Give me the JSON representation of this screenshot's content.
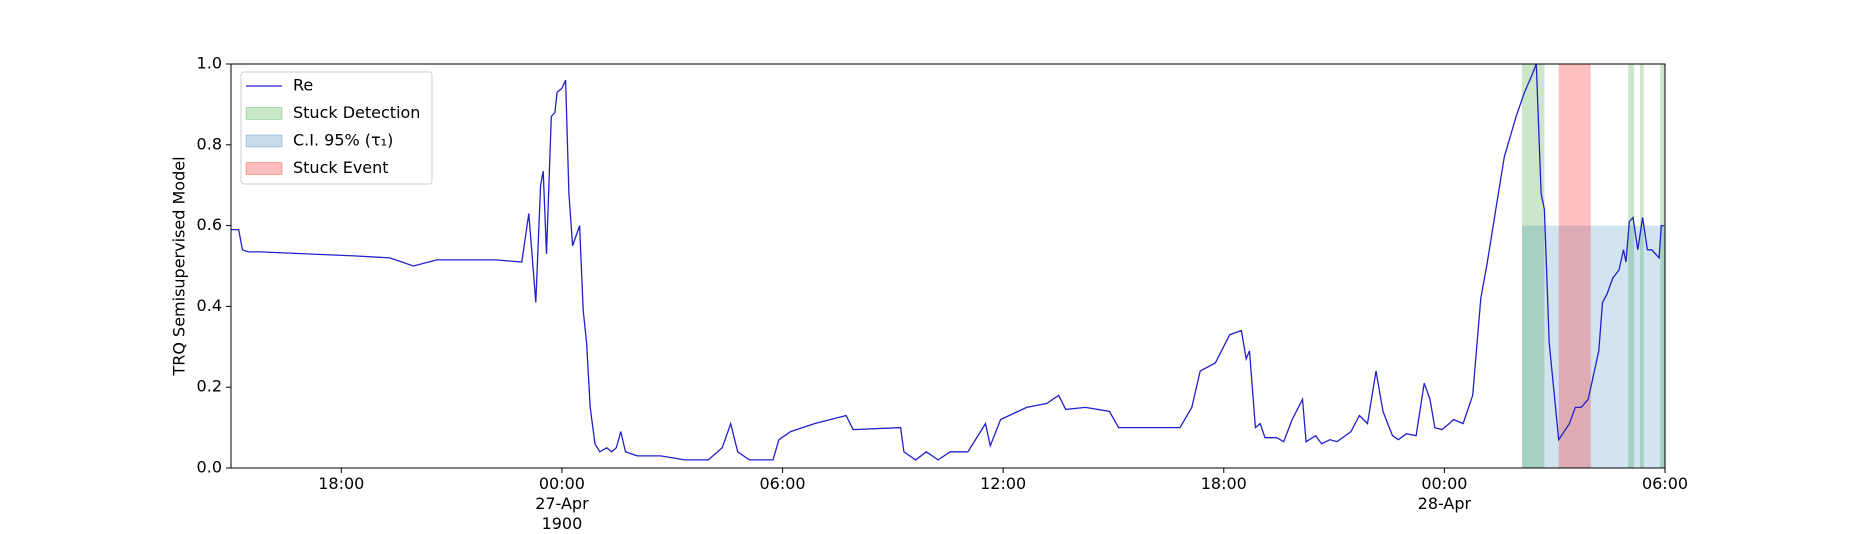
{
  "chart_data": {
    "type": "line",
    "ylabel": "TRQ Semisupervised Model",
    "xlim": [
      -9,
      30
    ],
    "xticks": [
      {
        "value": -6,
        "label": "18:00"
      },
      {
        "value": 0,
        "label": "00:00\n27-Apr\n1900"
      },
      {
        "value": 6,
        "label": "06:00"
      },
      {
        "value": 12,
        "label": "12:00"
      },
      {
        "value": 18,
        "label": "18:00"
      },
      {
        "value": 24,
        "label": "00:00\n28-Apr"
      },
      {
        "value": 30,
        "label": "06:00"
      }
    ],
    "ylim": [
      0,
      1
    ],
    "yticks": [
      {
        "value": 0,
        "label": "0.0"
      },
      0.2,
      0.4,
      0.6,
      0.8,
      {
        "value": 1,
        "label": "1.0"
      }
    ],
    "legend": "upper left",
    "x": [
      -9.0,
      -8.79,
      -8.69,
      -8.53,
      -8.21,
      -6.93,
      -5.65,
      -4.68,
      -4.04,
      -3.4,
      -1.8,
      -1.09,
      -0.9,
      -0.71,
      -0.58,
      -0.51,
      -0.42,
      -0.29,
      -0.19,
      -0.13,
      0,
      0.1,
      0.19,
      0.29,
      0.48,
      0.58,
      0.67,
      0.77,
      0.9,
      1.03,
      1.22,
      1.35,
      1.48,
      1.6,
      1.73,
      2.05,
      2.69,
      3.34,
      3.98,
      4.36,
      4.59,
      4.78,
      5.1,
      5.74,
      5.9,
      6.22,
      6.87,
      7.73,
      7.92,
      9.21,
      9.3,
      9.62,
      9.91,
      10.23,
      10.56,
      11.04,
      11.52,
      11.65,
      11.93,
      12.64,
      13.19,
      13.51,
      13.7,
      14.24,
      14.89,
      15.14,
      16.81,
      17.13,
      17.36,
      17.77,
      18.16,
      18.48,
      18.61,
      18.7,
      18.86,
      18.99,
      19.12,
      19.44,
      19.63,
      19.86,
      20.14,
      20.24,
      20.5,
      20.66,
      20.89,
      21.08,
      21.46,
      21.69,
      21.91,
      22.14,
      22.33,
      22.59,
      22.75,
      22.97,
      23.23,
      23.45,
      23.61,
      23.74,
      23.93,
      24.13,
      24.25,
      24.51,
      24.77,
      24.99,
      25.15,
      25.47,
      25.63,
      25.95,
      26.18,
      26.37,
      26.5,
      26.63,
      26.72,
      26.85,
      27.11,
      27.4,
      27.56,
      27.72,
      27.91,
      28.2,
      28.3,
      28.42,
      28.58,
      28.75,
      28.87,
      28.94,
      29.03,
      29.13,
      29.26,
      29.39,
      29.52,
      29.64,
      29.84,
      29.9,
      29.97
    ],
    "series": [
      {
        "name": "Re",
        "color": "#2020cc",
        "values": [
          0.59,
          0.59,
          0.54,
          0.535,
          0.535,
          0.53,
          0.525,
          0.52,
          0.5,
          0.515,
          0.515,
          0.51,
          0.63,
          0.41,
          0.7,
          0.735,
          0.53,
          0.87,
          0.88,
          0.93,
          0.94,
          0.96,
          0.68,
          0.55,
          0.6,
          0.39,
          0.31,
          0.15,
          0.06,
          0.04,
          0.05,
          0.04,
          0.05,
          0.09,
          0.04,
          0.03,
          0.03,
          0.02,
          0.02,
          0.05,
          0.11,
          0.04,
          0.02,
          0.02,
          0.07,
          0.09,
          0.11,
          0.13,
          0.095,
          0.1,
          0.04,
          0.02,
          0.04,
          0.02,
          0.04,
          0.04,
          0.11,
          0.055,
          0.12,
          0.15,
          0.16,
          0.18,
          0.145,
          0.15,
          0.14,
          0.1,
          0.1,
          0.15,
          0.24,
          0.26,
          0.33,
          0.34,
          0.27,
          0.29,
          0.1,
          0.11,
          0.075,
          0.075,
          0.065,
          0.12,
          0.17,
          0.065,
          0.08,
          0.06,
          0.07,
          0.065,
          0.09,
          0.13,
          0.11,
          0.24,
          0.14,
          0.08,
          0.07,
          0.085,
          0.08,
          0.21,
          0.17,
          0.1,
          0.095,
          0.11,
          0.12,
          0.11,
          0.18,
          0.42,
          0.5,
          0.68,
          0.77,
          0.87,
          0.93,
          0.97,
          1.0,
          0.68,
          0.64,
          0.31,
          0.07,
          0.11,
          0.15,
          0.15,
          0.17,
          0.29,
          0.41,
          0.43,
          0.47,
          0.49,
          0.54,
          0.51,
          0.61,
          0.62,
          0.54,
          0.62,
          0.54,
          0.54,
          0.52,
          0.6,
          0.6
        ]
      }
    ],
    "shading": [
      {
        "name": "Stuck Detection",
        "color": "#2ca02c",
        "spans": [
          {
            "start": 26.11,
            "end": 26.72
          },
          {
            "start": 29.0,
            "end": 29.16
          },
          {
            "start": 29.32,
            "end": 29.42
          },
          {
            "start": 29.87,
            "end": 30
          }
        ]
      },
      {
        "name": "C.I. 95% (τ₁)",
        "color": "#1f77b4",
        "top": 0.6,
        "spans": [
          {
            "start": 26.11,
            "end": 30
          }
        ]
      },
      {
        "name": "Stuck Event",
        "color": "#ff0000",
        "spans": [
          {
            "start": 27.11,
            "end": 27.98
          }
        ]
      }
    ]
  }
}
